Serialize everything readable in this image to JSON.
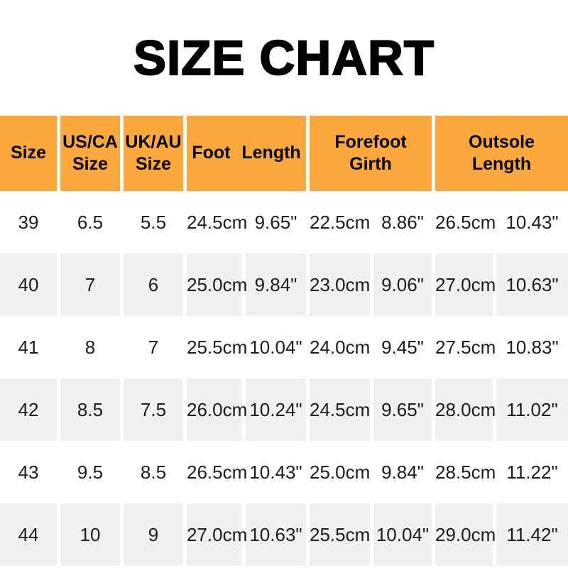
{
  "title": "SIZE CHART",
  "colors": {
    "header_bg": "#FCA83C",
    "row_bg": "#FFFFFF",
    "row_alt_bg": "#F0F0F0",
    "title_text": "#000000",
    "cell_text": "#1C1C1E"
  },
  "chart_data": {
    "type": "table",
    "title": "SIZE CHART",
    "headers": [
      {
        "key": "size",
        "label": "Size",
        "span": 1
      },
      {
        "key": "us-ca-size",
        "label": "US/CA Size",
        "span": 1
      },
      {
        "key": "uk-au-size",
        "label": "UK/AU Size",
        "span": 1
      },
      {
        "key": "foot-length",
        "label": "Foot Length",
        "span": 2
      },
      {
        "key": "forefoot-girth",
        "label": "Forefoot Girth",
        "span": 2
      },
      {
        "key": "outsole-length",
        "label": "Outsole Length",
        "span": 2
      }
    ],
    "rows": [
      [
        "39",
        "6.5",
        "5.5",
        "24.5cm",
        "9.65\"",
        "22.5cm",
        "8.86\"",
        "26.5cm",
        "10.43\""
      ],
      [
        "40",
        "7",
        "6",
        "25.0cm",
        "9.84\"",
        "23.0cm",
        "9.06\"",
        "27.0cm",
        "10.63\""
      ],
      [
        "41",
        "8",
        "7",
        "25.5cm",
        "10.04\"",
        "24.0cm",
        "9.45\"",
        "27.5cm",
        "10.83\""
      ],
      [
        "42",
        "8.5",
        "7.5",
        "26.0cm",
        "10.24\"",
        "24.5cm",
        "9.65\"",
        "28.0cm",
        "11.02\""
      ],
      [
        "43",
        "9.5",
        "8.5",
        "26.5cm",
        "10.43\"",
        "25.0cm",
        "9.84\"",
        "28.5cm",
        "11.22\""
      ],
      [
        "44",
        "10",
        "9",
        "27.0cm",
        "10.63\"",
        "25.5cm",
        "10.04\"",
        "29.0cm",
        "11.42\""
      ]
    ]
  }
}
